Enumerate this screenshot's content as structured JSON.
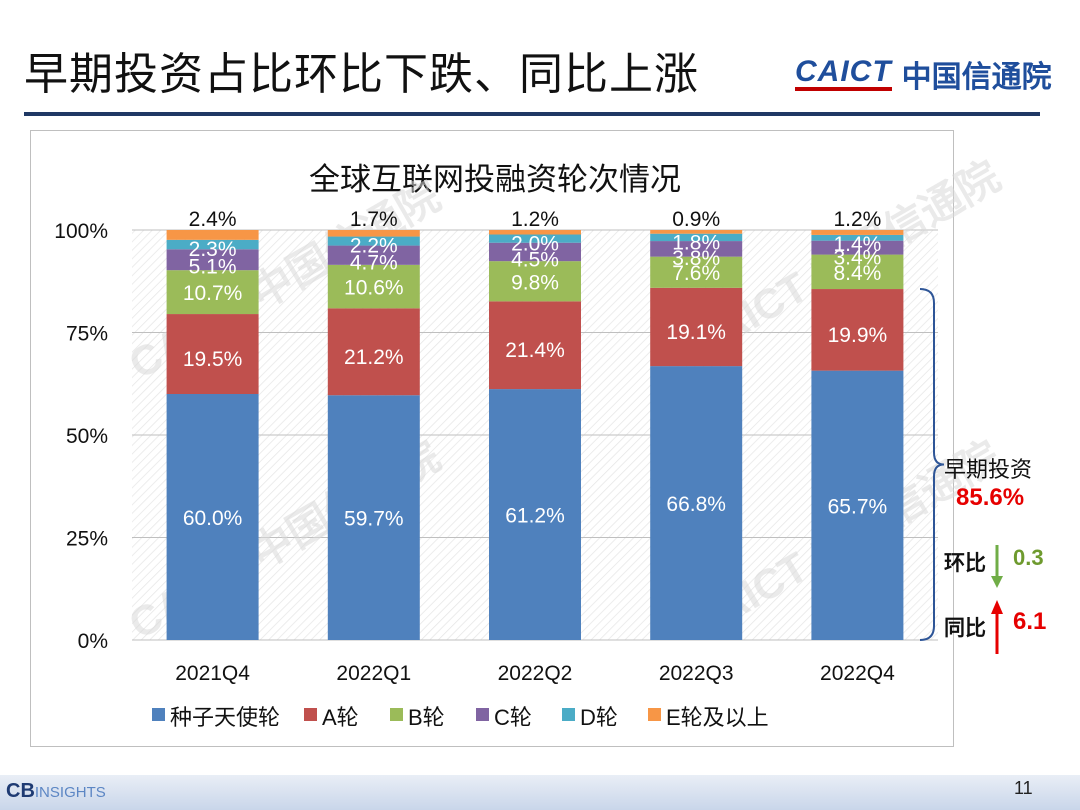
{
  "slide": {
    "title": "早期投资占比环比下跌、同比上涨",
    "logo_en": "CAICT",
    "logo_cn": "中国信通院",
    "page_number": "11",
    "footer_logo": "CB",
    "footer_logo_sub": "INSIGHTS"
  },
  "chart_data": {
    "type": "bar",
    "stacked": true,
    "title": "全球互联网投融资轮次情况",
    "categories": [
      "2021Q4",
      "2022Q1",
      "2022Q2",
      "2022Q3",
      "2022Q4"
    ],
    "yticks": [
      "0%",
      "25%",
      "50%",
      "75%",
      "100%"
    ],
    "ylim": [
      0,
      100
    ],
    "legend_position": "bottom",
    "series": [
      {
        "name": "种子天使轮",
        "color": "#4f81bd",
        "values": [
          60.0,
          59.7,
          61.2,
          66.8,
          65.7
        ],
        "labels": [
          "60.0%",
          "59.7%",
          "61.2%",
          "66.8%",
          "65.7%"
        ]
      },
      {
        "name": "A轮",
        "color": "#c0504d",
        "values": [
          19.5,
          21.2,
          21.4,
          19.1,
          19.9
        ],
        "labels": [
          "19.5%",
          "21.2%",
          "21.4%",
          "19.1%",
          "19.9%"
        ]
      },
      {
        "name": "B轮",
        "color": "#9bbb59",
        "values": [
          10.7,
          10.6,
          9.8,
          7.6,
          8.4
        ],
        "labels": [
          "10.7%",
          "10.6%",
          "9.8%",
          "7.6%",
          "8.4%"
        ]
      },
      {
        "name": "C轮",
        "color": "#8064a2",
        "values": [
          5.1,
          4.7,
          4.5,
          3.8,
          3.4
        ],
        "labels": [
          "5.1%",
          "4.7%",
          "4.5%",
          "3.8%",
          "3.4%"
        ]
      },
      {
        "name": "D轮",
        "color": "#4bacc6",
        "values": [
          2.3,
          2.2,
          2.0,
          1.8,
          1.4
        ],
        "labels": [
          "2.3%",
          "2.2%",
          "2.0%",
          "1.8%",
          "1.4%"
        ]
      },
      {
        "name": "E轮及以上",
        "color": "#f79646",
        "values": [
          2.4,
          1.7,
          1.2,
          0.9,
          1.2
        ],
        "labels": [
          "2.4%",
          "1.7%",
          "1.2%",
          "0.9%",
          "1.2%"
        ]
      }
    ],
    "annotation": {
      "label": "早期投资",
      "value": "85.6%",
      "qoq_label": "环比",
      "qoq_value": "0.3",
      "qoq_direction": "down",
      "yoy_label": "同比",
      "yoy_value": "6.1",
      "yoy_direction": "up"
    },
    "watermark": "CAICT 中国信通院"
  },
  "colors": {
    "value_red": "#e60000",
    "value_green": "#6e9a2e",
    "arrow_green": "#70ad47",
    "arrow_red": "#e60000",
    "bracket": "#2e5597"
  }
}
